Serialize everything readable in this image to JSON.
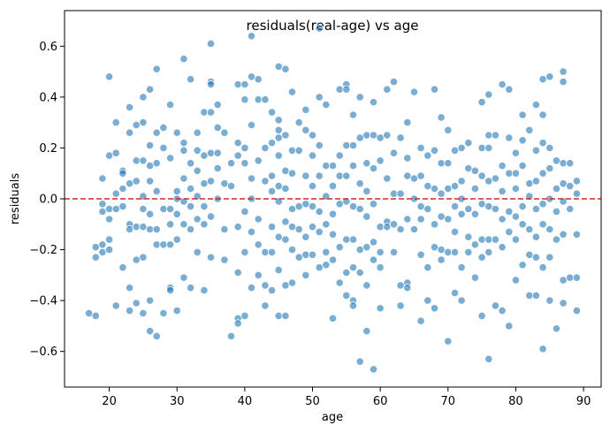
{
  "chart_data": {
    "type": "scatter",
    "title": "residuals(real-age) vs age",
    "xlabel": "age",
    "ylabel": "residuals",
    "xlim": [
      13.4,
      92.6
    ],
    "ylim": [
      -0.74,
      0.74
    ],
    "xticks": [
      20,
      30,
      40,
      50,
      60,
      70,
      80,
      90
    ],
    "yticks": [
      -0.6,
      -0.4,
      -0.2,
      0.0,
      0.2,
      0.4,
      0.6
    ],
    "ytick_labels": [
      "−0.6",
      "−0.4",
      "−0.2",
      "0.0",
      "0.2",
      "0.4",
      "0.6"
    ],
    "grid": false,
    "marker_color": "#1f77b4",
    "marker_alpha": 0.6,
    "reference_line": {
      "y": 0,
      "color": "#d62728",
      "style": "dashed"
    },
    "points": [
      [
        17,
        -0.45
      ],
      [
        18,
        -0.46
      ],
      [
        18,
        -0.23
      ],
      [
        18,
        -0.19
      ],
      [
        19,
        0.08
      ],
      [
        19,
        -0.02
      ],
      [
        19,
        -0.05
      ],
      [
        19,
        -0.18
      ],
      [
        19,
        -0.21
      ],
      [
        20,
        0.48
      ],
      [
        20,
        0.17
      ],
      [
        20,
        -0.04
      ],
      [
        20,
        -0.08
      ],
      [
        20,
        -0.16
      ],
      [
        20,
        -0.2
      ],
      [
        21,
        0.3
      ],
      [
        21,
        0.18
      ],
      [
        21,
        0.02
      ],
      [
        21,
        -0.04
      ],
      [
        21,
        -0.42
      ],
      [
        22,
        0.11
      ],
      [
        22,
        0.1
      ],
      [
        22,
        0.04
      ],
      [
        22,
        -0.03
      ],
      [
        22,
        -0.27
      ],
      [
        23,
        0.36
      ],
      [
        23,
        0.26
      ],
      [
        23,
        0.06
      ],
      [
        23,
        -0.1
      ],
      [
        23,
        -0.12
      ],
      [
        23,
        -0.35
      ],
      [
        23,
        -0.44
      ],
      [
        24,
        0.29
      ],
      [
        24,
        0.15
      ],
      [
        24,
        0.07
      ],
      [
        24,
        -0.11
      ],
      [
        24,
        -0.24
      ],
      [
        24,
        -0.41
      ],
      [
        25,
        0.4
      ],
      [
        25,
        0.3
      ],
      [
        25,
        0.15
      ],
      [
        25,
        0.01
      ],
      [
        25,
        -0.04
      ],
      [
        25,
        -0.11
      ],
      [
        25,
        -0.23
      ],
      [
        25,
        -0.45
      ],
      [
        26,
        0.43
      ],
      [
        26,
        0.21
      ],
      [
        26,
        0.13
      ],
      [
        26,
        0.07
      ],
      [
        26,
        -0.06
      ],
      [
        26,
        -0.12
      ],
      [
        26,
        -0.4
      ],
      [
        26,
        -0.52
      ],
      [
        27,
        0.51
      ],
      [
        27,
        0.26
      ],
      [
        27,
        0.14
      ],
      [
        27,
        0.03
      ],
      [
        27,
        -0.12
      ],
      [
        27,
        -0.18
      ],
      [
        27,
        -0.54
      ],
      [
        28,
        0.28
      ],
      [
        28,
        0.2
      ],
      [
        28,
        -0.04
      ],
      [
        28,
        -0.18
      ],
      [
        28,
        -0.45
      ],
      [
        29,
        0.37
      ],
      [
        29,
        0.16
      ],
      [
        29,
        -0.04
      ],
      [
        29,
        -0.1
      ],
      [
        29,
        -0.18
      ],
      [
        29,
        -0.35
      ],
      [
        29,
        -0.36
      ],
      [
        30,
        0.26
      ],
      [
        30,
        0.03
      ],
      [
        30,
        0.0
      ],
      [
        30,
        -0.06
      ],
      [
        30,
        -0.16
      ],
      [
        30,
        -0.44
      ],
      [
        31,
        0.55
      ],
      [
        31,
        0.22
      ],
      [
        31,
        0.19
      ],
      [
        31,
        0.08
      ],
      [
        31,
        -0.01
      ],
      [
        31,
        -0.1
      ],
      [
        31,
        -0.31
      ],
      [
        32,
        0.47
      ],
      [
        32,
        0.14
      ],
      [
        32,
        0.04
      ],
      [
        32,
        -0.03
      ],
      [
        32,
        -0.12
      ],
      [
        32,
        -0.35
      ],
      [
        33,
        0.26
      ],
      [
        33,
        0.19
      ],
      [
        33,
        0.11
      ],
      [
        33,
        0.01
      ],
      [
        33,
        -0.08
      ],
      [
        33,
        -0.21
      ],
      [
        34,
        0.34
      ],
      [
        34,
        0.17
      ],
      [
        34,
        0.06
      ],
      [
        34,
        -0.03
      ],
      [
        34,
        -0.1
      ],
      [
        34,
        -0.36
      ],
      [
        35,
        0.61
      ],
      [
        35,
        0.46
      ],
      [
        35,
        0.45
      ],
      [
        35,
        0.34
      ],
      [
        35,
        0.18
      ],
      [
        35,
        0.07
      ],
      [
        35,
        -0.07
      ],
      [
        35,
        -0.23
      ],
      [
        36,
        0.37
      ],
      [
        36,
        0.28
      ],
      [
        36,
        0.18
      ],
      [
        36,
        0.12
      ],
      [
        36,
        0.0
      ],
      [
        37,
        0.26
      ],
      [
        37,
        0.06
      ],
      [
        37,
        -0.12
      ],
      [
        37,
        -0.24
      ],
      [
        38,
        0.14
      ],
      [
        38,
        0.05
      ],
      [
        38,
        -0.54
      ],
      [
        39,
        0.45
      ],
      [
        39,
        0.22
      ],
      [
        39,
        0.17
      ],
      [
        39,
        -0.11
      ],
      [
        39,
        -0.29
      ],
      [
        39,
        -0.47
      ],
      [
        39,
        -0.49
      ],
      [
        40,
        0.45
      ],
      [
        40,
        0.39
      ],
      [
        40,
        0.2
      ],
      [
        40,
        0.14
      ],
      [
        40,
        -0.05
      ],
      [
        40,
        -0.21
      ],
      [
        40,
        -0.46
      ],
      [
        41,
        0.64
      ],
      [
        41,
        0.48
      ],
      [
        41,
        0.29
      ],
      [
        41,
        0.08
      ],
      [
        41,
        0.0
      ],
      [
        41,
        -0.13
      ],
      [
        41,
        -0.35
      ],
      [
        42,
        0.47
      ],
      [
        42,
        0.39
      ],
      [
        42,
        0.15
      ],
      [
        42,
        -0.08
      ],
      [
        42,
        -0.18
      ],
      [
        42,
        -0.3
      ],
      [
        43,
        0.39
      ],
      [
        43,
        0.2
      ],
      [
        43,
        0.07
      ],
      [
        43,
        -0.21
      ],
      [
        43,
        -0.34
      ],
      [
        43,
        -0.42
      ],
      [
        44,
        0.34
      ],
      [
        44,
        0.22
      ],
      [
        44,
        0.09
      ],
      [
        44,
        0.03
      ],
      [
        44,
        -0.11
      ],
      [
        44,
        -0.21
      ],
      [
        44,
        -0.36
      ],
      [
        45,
        0.52
      ],
      [
        45,
        0.31
      ],
      [
        45,
        0.27
      ],
      [
        45,
        0.24
      ],
      [
        45,
        0.17
      ],
      [
        45,
        0.05
      ],
      [
        45,
        -0.01
      ],
      [
        45,
        -0.15
      ],
      [
        45,
        -0.28
      ],
      [
        45,
        -0.46
      ],
      [
        46,
        0.51
      ],
      [
        46,
        0.25
      ],
      [
        46,
        0.11
      ],
      [
        46,
        0.04
      ],
      [
        46,
        -0.09
      ],
      [
        46,
        -0.16
      ],
      [
        46,
        -0.34
      ],
      [
        46,
        -0.46
      ],
      [
        47,
        0.42
      ],
      [
        47,
        0.19
      ],
      [
        47,
        0.1
      ],
      [
        47,
        -0.04
      ],
      [
        47,
        -0.11
      ],
      [
        47,
        -0.2
      ],
      [
        47,
        -0.33
      ],
      [
        48,
        0.3
      ],
      [
        48,
        0.19
      ],
      [
        48,
        -0.03
      ],
      [
        48,
        -0.12
      ],
      [
        48,
        -0.23
      ],
      [
        49,
        0.35
      ],
      [
        49,
        0.27
      ],
      [
        49,
        0.09
      ],
      [
        49,
        -0.02
      ],
      [
        49,
        -0.15
      ],
      [
        49,
        -0.22
      ],
      [
        49,
        -0.3
      ],
      [
        50,
        0.25
      ],
      [
        50,
        0.17
      ],
      [
        50,
        0.05
      ],
      [
        50,
        -0.03
      ],
      [
        50,
        -0.11
      ],
      [
        50,
        -0.22
      ],
      [
        51,
        0.67
      ],
      [
        51,
        0.4
      ],
      [
        51,
        0.21
      ],
      [
        51,
        0.09
      ],
      [
        51,
        -0.05
      ],
      [
        51,
        -0.13
      ],
      [
        51,
        -0.27
      ],
      [
        52,
        0.37
      ],
      [
        52,
        0.13
      ],
      [
        52,
        0.01
      ],
      [
        52,
        -0.1
      ],
      [
        52,
        -0.21
      ],
      [
        52,
        -0.26
      ],
      [
        53,
        0.13
      ],
      [
        53,
        0.05
      ],
      [
        53,
        -0.06
      ],
      [
        53,
        -0.14
      ],
      [
        53,
        -0.24
      ],
      [
        53,
        -0.47
      ],
      [
        54,
        0.43
      ],
      [
        54,
        0.17
      ],
      [
        54,
        0.09
      ],
      [
        54,
        -0.02
      ],
      [
        54,
        -0.19
      ],
      [
        54,
        -0.33
      ],
      [
        55,
        0.45
      ],
      [
        55,
        0.43
      ],
      [
        55,
        0.21
      ],
      [
        55,
        0.09
      ],
      [
        55,
        -0.01
      ],
      [
        55,
        -0.16
      ],
      [
        55,
        -0.29
      ],
      [
        55,
        -0.38
      ],
      [
        56,
        0.33
      ],
      [
        56,
        0.21
      ],
      [
        56,
        0.13
      ],
      [
        56,
        -0.03
      ],
      [
        56,
        -0.16
      ],
      [
        56,
        -0.27
      ],
      [
        56,
        -0.4
      ],
      [
        56,
        -0.42
      ],
      [
        57,
        0.4
      ],
      [
        57,
        0.24
      ],
      [
        57,
        0.06
      ],
      [
        57,
        -0.04
      ],
      [
        57,
        -0.2
      ],
      [
        57,
        -0.29
      ],
      [
        57,
        -0.64
      ],
      [
        58,
        0.25
      ],
      [
        58,
        0.14
      ],
      [
        58,
        0.03
      ],
      [
        58,
        -0.07
      ],
      [
        58,
        -0.19
      ],
      [
        58,
        -0.34
      ],
      [
        58,
        -0.52
      ],
      [
        59,
        0.38
      ],
      [
        59,
        0.25
      ],
      [
        59,
        0.12
      ],
      [
        59,
        -0.02
      ],
      [
        59,
        -0.17
      ],
      [
        59,
        -0.24
      ],
      [
        59,
        -0.67
      ],
      [
        60,
        0.24
      ],
      [
        60,
        0.15
      ],
      [
        60,
        -0.11
      ],
      [
        60,
        -0.21
      ],
      [
        60,
        -0.27
      ],
      [
        60,
        -0.43
      ],
      [
        61,
        0.43
      ],
      [
        61,
        0.25
      ],
      [
        61,
        0.08
      ],
      [
        61,
        -0.09
      ],
      [
        61,
        -0.11
      ],
      [
        62,
        0.46
      ],
      [
        62,
        0.18
      ],
      [
        62,
        0.02
      ],
      [
        62,
        -0.1
      ],
      [
        62,
        -0.21
      ],
      [
        63,
        0.24
      ],
      [
        63,
        0.02
      ],
      [
        63,
        -0.12
      ],
      [
        63,
        -0.34
      ],
      [
        63,
        -0.42
      ],
      [
        64,
        0.3
      ],
      [
        64,
        0.16
      ],
      [
        64,
        0.09
      ],
      [
        64,
        -0.08
      ],
      [
        64,
        -0.33
      ],
      [
        64,
        -0.35
      ],
      [
        65,
        0.42
      ],
      [
        65,
        0.08
      ],
      [
        65,
        0.0
      ],
      [
        65,
        -0.12
      ],
      [
        66,
        0.2
      ],
      [
        66,
        0.09
      ],
      [
        66,
        -0.03
      ],
      [
        66,
        -0.08
      ],
      [
        66,
        -0.22
      ],
      [
        66,
        -0.48
      ],
      [
        67,
        0.17
      ],
      [
        67,
        0.05
      ],
      [
        67,
        -0.04
      ],
      [
        67,
        -0.27
      ],
      [
        67,
        -0.4
      ],
      [
        68,
        0.43
      ],
      [
        68,
        0.19
      ],
      [
        68,
        0.04
      ],
      [
        68,
        -0.1
      ],
      [
        68,
        -0.19
      ],
      [
        68,
        -0.43
      ],
      [
        69,
        0.32
      ],
      [
        69,
        0.14
      ],
      [
        69,
        0.02
      ],
      [
        69,
        -0.07
      ],
      [
        69,
        -0.2
      ],
      [
        69,
        -0.24
      ],
      [
        70,
        0.27
      ],
      [
        70,
        0.14
      ],
      [
        70,
        0.04
      ],
      [
        70,
        -0.08
      ],
      [
        70,
        -0.21
      ],
      [
        70,
        -0.56
      ],
      [
        71,
        0.19
      ],
      [
        71,
        0.05
      ],
      [
        71,
        -0.03
      ],
      [
        71,
        -0.13
      ],
      [
        71,
        -0.21
      ],
      [
        71,
        -0.37
      ],
      [
        72,
        0.2
      ],
      [
        72,
        0.07
      ],
      [
        72,
        0.0
      ],
      [
        72,
        -0.06
      ],
      [
        72,
        -0.27
      ],
      [
        72,
        -0.4
      ],
      [
        73,
        0.22
      ],
      [
        73,
        0.12
      ],
      [
        73,
        -0.04
      ],
      [
        73,
        -0.15
      ],
      [
        73,
        -0.21
      ],
      [
        74,
        0.11
      ],
      [
        74,
        0.04
      ],
      [
        74,
        -0.06
      ],
      [
        74,
        -0.18
      ],
      [
        74,
        -0.31
      ],
      [
        75,
        0.38
      ],
      [
        75,
        0.2
      ],
      [
        75,
        0.09
      ],
      [
        75,
        -0.02
      ],
      [
        75,
        -0.16
      ],
      [
        75,
        -0.23
      ],
      [
        75,
        -0.46
      ],
      [
        76,
        0.41
      ],
      [
        76,
        0.25
      ],
      [
        76,
        0.2
      ],
      [
        76,
        0.07
      ],
      [
        76,
        -0.03
      ],
      [
        76,
        -0.16
      ],
      [
        76,
        -0.21
      ],
      [
        76,
        -0.63
      ],
      [
        77,
        0.25
      ],
      [
        77,
        0.08
      ],
      [
        77,
        -0.04
      ],
      [
        77,
        -0.16
      ],
      [
        77,
        -0.42
      ],
      [
        78,
        0.45
      ],
      [
        78,
        0.13
      ],
      [
        78,
        0.03
      ],
      [
        78,
        -0.08
      ],
      [
        78,
        -0.19
      ],
      [
        78,
        -0.44
      ],
      [
        79,
        0.43
      ],
      [
        79,
        0.24
      ],
      [
        79,
        0.1
      ],
      [
        79,
        -0.05
      ],
      [
        79,
        -0.13
      ],
      [
        79,
        -0.5
      ],
      [
        80,
        0.18
      ],
      [
        80,
        0.1
      ],
      [
        80,
        0.04
      ],
      [
        80,
        -0.07
      ],
      [
        80,
        -0.16
      ],
      [
        80,
        -0.32
      ],
      [
        81,
        0.33
      ],
      [
        81,
        0.23
      ],
      [
        81,
        0.13
      ],
      [
        81,
        -0.03
      ],
      [
        81,
        -0.1
      ],
      [
        81,
        -0.26
      ],
      [
        82,
        0.27
      ],
      [
        82,
        0.06
      ],
      [
        82,
        0.01
      ],
      [
        82,
        -0.12
      ],
      [
        82,
        -0.22
      ],
      [
        82,
        -0.38
      ],
      [
        83,
        0.37
      ],
      [
        83,
        0.19
      ],
      [
        83,
        0.07
      ],
      [
        83,
        -0.04
      ],
      [
        83,
        -0.15
      ],
      [
        83,
        -0.23
      ],
      [
        83,
        -0.38
      ],
      [
        84,
        0.47
      ],
      [
        84,
        0.33
      ],
      [
        84,
        0.22
      ],
      [
        84,
        0.1
      ],
      [
        84,
        -0.02
      ],
      [
        84,
        -0.1
      ],
      [
        84,
        -0.27
      ],
      [
        84,
        -0.59
      ],
      [
        85,
        0.48
      ],
      [
        85,
        0.2
      ],
      [
        85,
        0.12
      ],
      [
        85,
        0.0
      ],
      [
        85,
        -0.12
      ],
      [
        85,
        -0.23
      ],
      [
        85,
        -0.4
      ],
      [
        86,
        0.15
      ],
      [
        86,
        0.04
      ],
      [
        86,
        -0.05
      ],
      [
        86,
        -0.16
      ],
      [
        86,
        -0.51
      ],
      [
        87,
        0.5
      ],
      [
        87,
        0.46
      ],
      [
        87,
        0.14
      ],
      [
        87,
        0.06
      ],
      [
        87,
        -0.01
      ],
      [
        87,
        -0.14
      ],
      [
        87,
        -0.32
      ],
      [
        87,
        -0.41
      ],
      [
        88,
        0.14
      ],
      [
        88,
        0.05
      ],
      [
        88,
        -0.04
      ],
      [
        88,
        -0.31
      ],
      [
        89,
        0.07
      ],
      [
        89,
        0.02
      ],
      [
        89,
        -0.14
      ],
      [
        89,
        -0.31
      ],
      [
        89,
        -0.44
      ]
    ]
  }
}
